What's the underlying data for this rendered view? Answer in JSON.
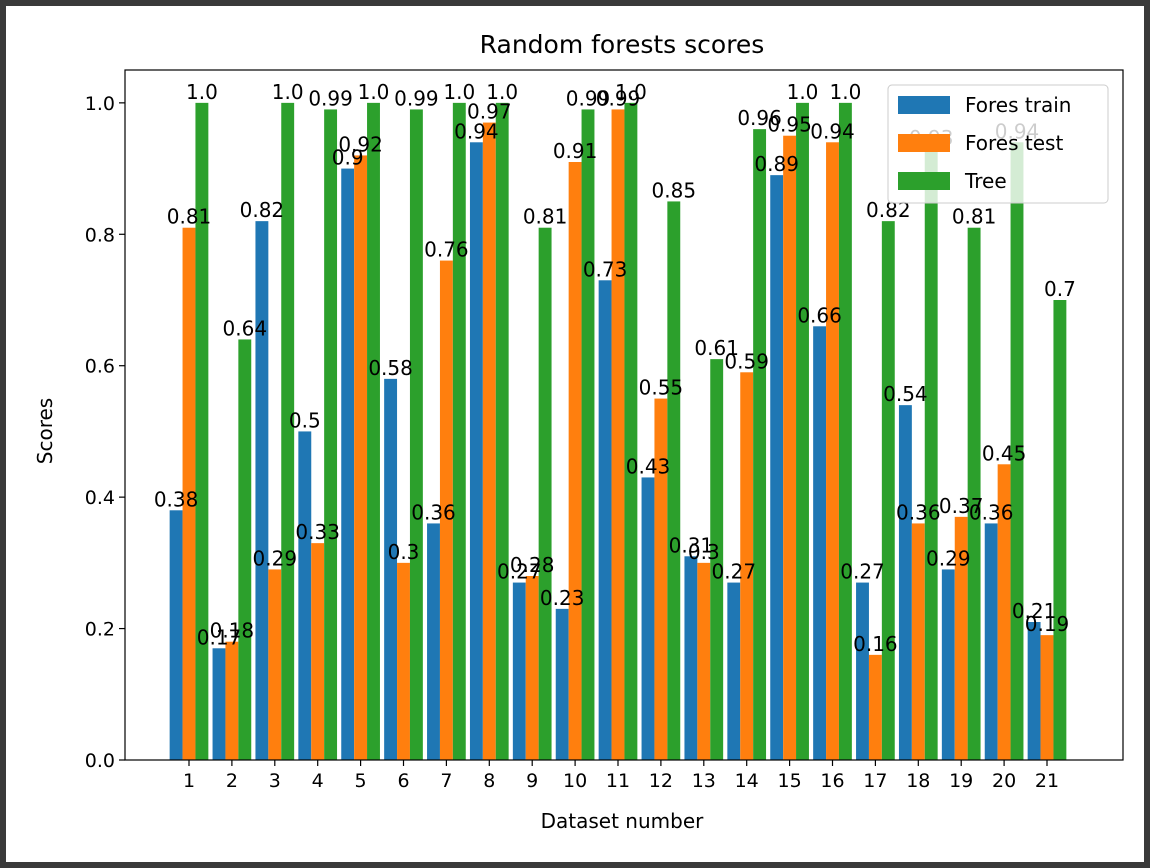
{
  "chart_data": {
    "type": "bar",
    "title": "Random forests scores",
    "xlabel": "Dataset number",
    "ylabel": "Scores",
    "ylim": [
      0,
      1.05
    ],
    "yticks": [
      "0.0",
      "0.2",
      "0.4",
      "0.6",
      "0.8",
      "1.0"
    ],
    "categories": [
      "1",
      "2",
      "3",
      "4",
      "5",
      "6",
      "7",
      "8",
      "9",
      "10",
      "11",
      "12",
      "13",
      "14",
      "15",
      "16",
      "17",
      "18",
      "19",
      "20",
      "21"
    ],
    "series": [
      {
        "name": "Fores train",
        "color": "#1f77b4",
        "values": [
          0.38,
          0.17,
          0.82,
          0.5,
          0.9,
          0.58,
          0.36,
          0.94,
          0.27,
          0.23,
          0.73,
          0.43,
          0.31,
          0.27,
          0.89,
          0.66,
          0.27,
          0.54,
          0.29,
          0.36,
          0.21
        ],
        "labels": [
          "0.38",
          "0.17",
          "0.82",
          "0.5",
          "0.9",
          "0.58",
          "0.36",
          "0.94",
          "0.27",
          "0.23",
          "0.73",
          "0.43",
          "0.31",
          "0.27",
          "0.89",
          "0.66",
          "0.27",
          "0.54",
          "0.29",
          "0.36",
          "0.21"
        ]
      },
      {
        "name": "Fores test",
        "color": "#ff7f0e",
        "values": [
          0.81,
          0.18,
          0.29,
          0.33,
          0.92,
          0.3,
          0.76,
          0.97,
          0.28,
          0.91,
          0.99,
          0.55,
          0.3,
          0.59,
          0.95,
          0.94,
          0.16,
          0.36,
          0.37,
          0.45,
          0.19
        ],
        "labels": [
          "0.81",
          "0.18",
          "0.29",
          "0.33",
          "0.92",
          "0.3",
          "0.76",
          "0.97",
          "0.28",
          "0.91",
          "0.99",
          "0.55",
          "0.3",
          "0.59",
          "0.95",
          "0.94",
          "0.16",
          "0.36",
          "0.37",
          "0.45",
          "0.19"
        ]
      },
      {
        "name": "Tree",
        "color": "#2ca02c",
        "values": [
          1.0,
          0.64,
          1.0,
          0.99,
          1.0,
          0.99,
          1.0,
          1.0,
          0.81,
          0.99,
          1.0,
          0.85,
          0.61,
          0.96,
          1.0,
          1.0,
          0.82,
          0.93,
          0.81,
          0.94,
          0.7
        ],
        "labels": [
          "1.0",
          "0.64",
          "1.0",
          "0.99",
          "1.0",
          "0.99",
          "1.0",
          "1.0",
          "0.81",
          "0.99",
          "1.0",
          "0.85",
          "0.61",
          "0.96",
          "1.0",
          "1.0",
          "0.82",
          "0.93",
          "0.81",
          "0.94",
          "0.7"
        ]
      }
    ],
    "legend": {
      "position": "top-right"
    },
    "grid": false
  }
}
